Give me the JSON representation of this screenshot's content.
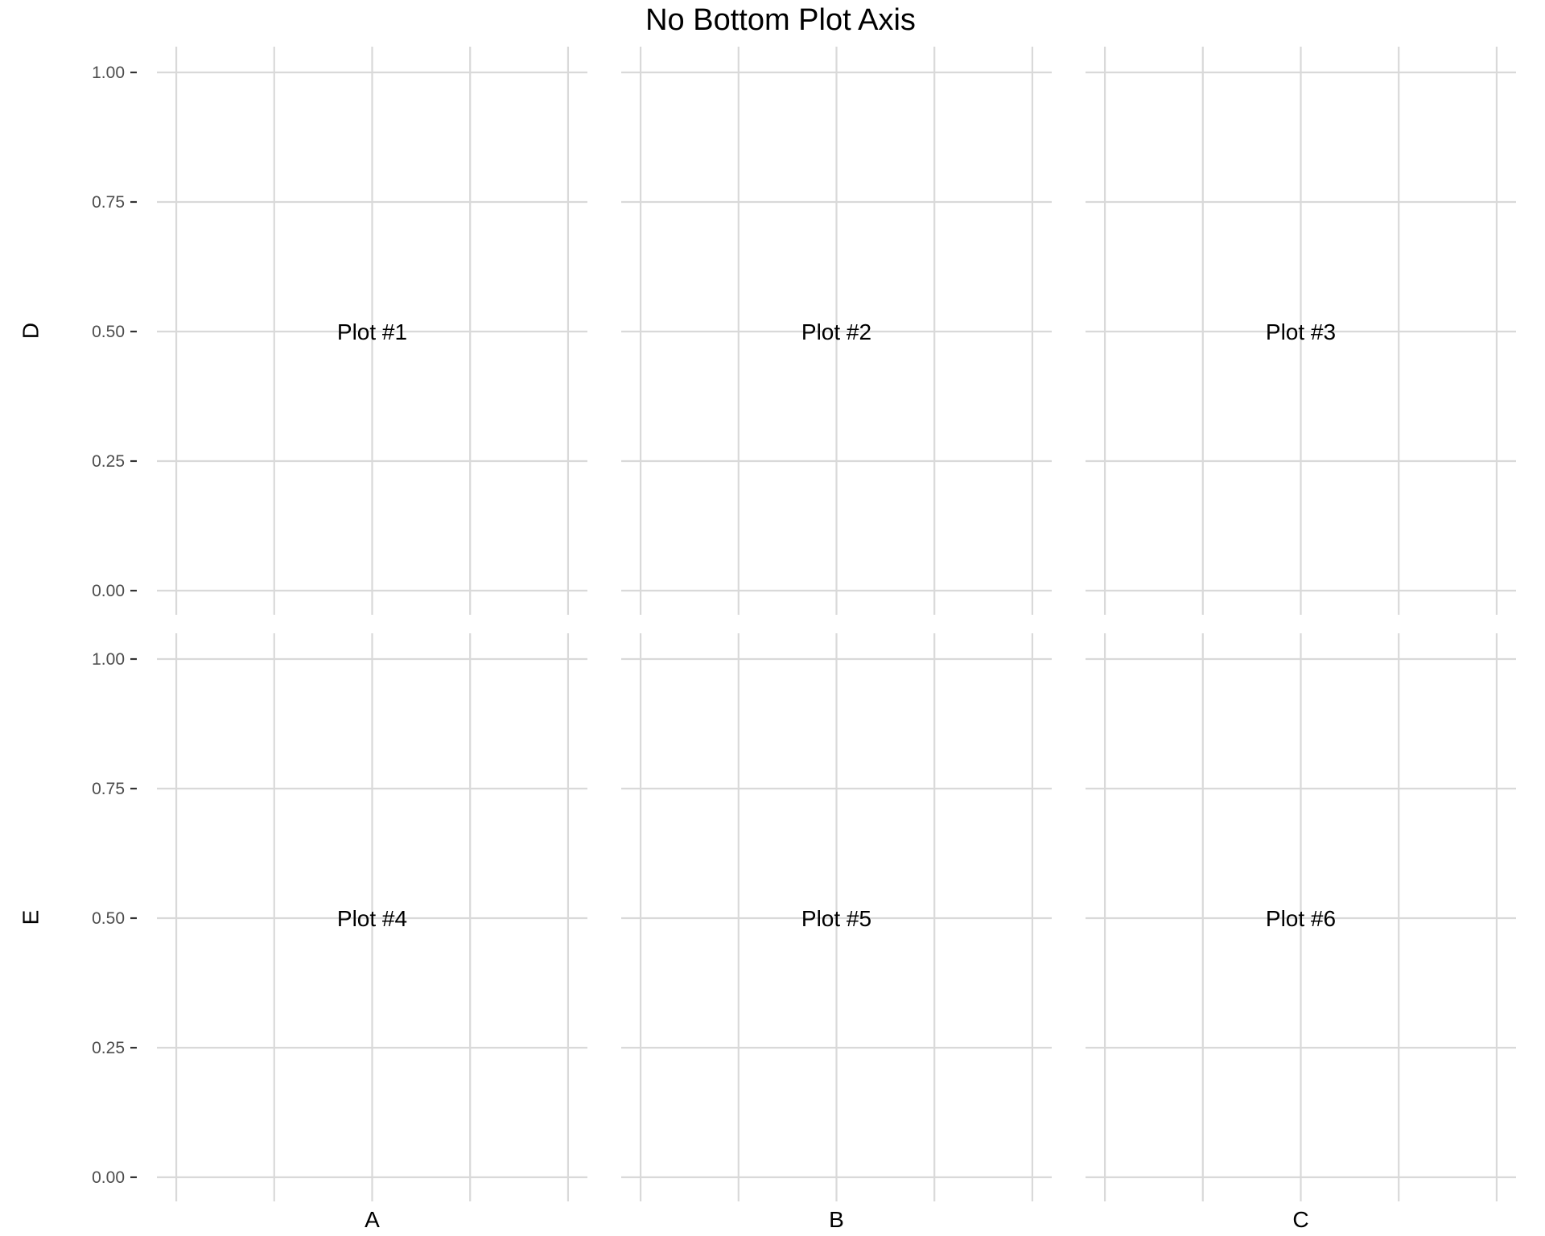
{
  "chart_data": {
    "type": "scatter",
    "title": "No Bottom Plot Axis",
    "columns": [
      "A",
      "B",
      "C"
    ],
    "rows": [
      "D",
      "E"
    ],
    "ylim": [
      0,
      1
    ],
    "y_ticks": [
      {
        "value": 0.0,
        "label": "0.00"
      },
      {
        "value": 0.25,
        "label": "0.25"
      },
      {
        "value": 0.5,
        "label": "0.50"
      },
      {
        "value": 0.75,
        "label": "0.75"
      },
      {
        "value": 1.0,
        "label": "1.00"
      }
    ],
    "x_gridlines": 5,
    "grid": true,
    "gridline_color": "#d9d9d9",
    "panels": [
      {
        "row": "D",
        "col": "A",
        "text": "Plot #1",
        "x": 0.5,
        "y": 0.5
      },
      {
        "row": "D",
        "col": "B",
        "text": "Plot #2",
        "x": 0.5,
        "y": 0.5
      },
      {
        "row": "D",
        "col": "C",
        "text": "Plot #3",
        "x": 0.5,
        "y": 0.5
      },
      {
        "row": "E",
        "col": "A",
        "text": "Plot #4",
        "x": 0.5,
        "y": 0.5
      },
      {
        "row": "E",
        "col": "B",
        "text": "Plot #5",
        "x": 0.5,
        "y": 0.5
      },
      {
        "row": "E",
        "col": "C",
        "text": "Plot #6",
        "x": 0.5,
        "y": 0.5
      }
    ]
  }
}
